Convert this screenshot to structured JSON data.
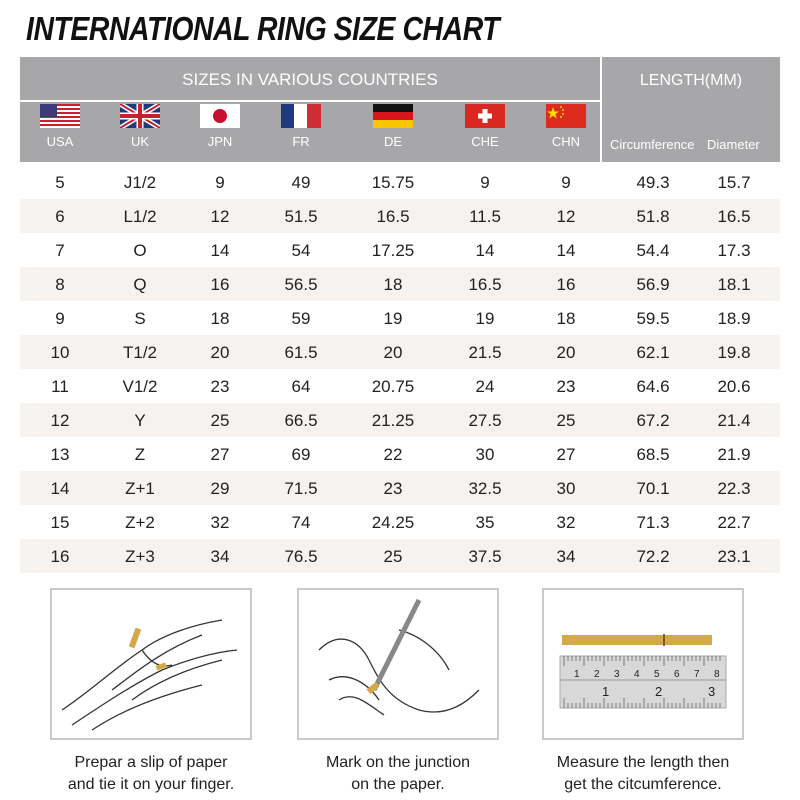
{
  "title": "INTERNATIONAL RING SIZE CHART",
  "header": {
    "sizes_title": "SIZES IN VARIOUS COUNTRIES",
    "length_title": "LENGTH(MM)",
    "countries": [
      {
        "code": "USA",
        "flag": "usa-flag"
      },
      {
        "code": "UK",
        "flag": "uk-flag"
      },
      {
        "code": "JPN",
        "flag": "japan-flag"
      },
      {
        "code": "FR",
        "flag": "france-flag"
      },
      {
        "code": "DE",
        "flag": "germany-flag"
      },
      {
        "code": "CHE",
        "flag": "switzerland-flag"
      },
      {
        "code": "CHN",
        "flag": "china-flag"
      }
    ],
    "circumference": "Circumference",
    "diameter": "Diameter"
  },
  "rows": [
    [
      "5",
      "J1/2",
      "9",
      "49",
      "15.75",
      "9",
      "9",
      "49.3",
      "15.7"
    ],
    [
      "6",
      "L1/2",
      "12",
      "51.5",
      "16.5",
      "11.5",
      "12",
      "51.8",
      "16.5"
    ],
    [
      "7",
      "O",
      "14",
      "54",
      "17.25",
      "14",
      "14",
      "54.4",
      "17.3"
    ],
    [
      "8",
      "Q",
      "16",
      "56.5",
      "18",
      "16.5",
      "16",
      "56.9",
      "18.1"
    ],
    [
      "9",
      "S",
      "18",
      "59",
      "19",
      "19",
      "18",
      "59.5",
      "18.9"
    ],
    [
      "10",
      "T1/2",
      "20",
      "61.5",
      "20",
      "21.5",
      "20",
      "62.1",
      "19.8"
    ],
    [
      "11",
      "V1/2",
      "23",
      "64",
      "20.75",
      "24",
      "23",
      "64.6",
      "20.6"
    ],
    [
      "12",
      "Y",
      "25",
      "66.5",
      "21.25",
      "27.5",
      "25",
      "67.2",
      "21.4"
    ],
    [
      "13",
      "Z",
      "27",
      "69",
      "22",
      "30",
      "27",
      "68.5",
      "21.9"
    ],
    [
      "14",
      "Z+1",
      "29",
      "71.5",
      "23",
      "32.5",
      "30",
      "70.1",
      "22.3"
    ],
    [
      "15",
      "Z+2",
      "32",
      "74",
      "24.25",
      "35",
      "32",
      "71.3",
      "22.7"
    ],
    [
      "16",
      "Z+3",
      "34",
      "76.5",
      "25",
      "37.5",
      "34",
      "72.2",
      "23.1"
    ]
  ],
  "steps": [
    {
      "line1": "Prepar a slip of paper",
      "line2": "and tie it on your finger."
    },
    {
      "line1": "Mark on the junction",
      "line2": "on the paper."
    },
    {
      "line1": "Measure  the length then",
      "line2": "get the citcumference."
    }
  ],
  "ruler": {
    "top": [
      "1",
      "2",
      "3",
      "4",
      "5",
      "6",
      "7",
      "8"
    ],
    "bottom": [
      "1",
      "2",
      "3"
    ]
  },
  "colors": {
    "header_bg": "#a7a7a9",
    "alt_row": "#f6f2f0",
    "paper": "#d4a94a"
  }
}
